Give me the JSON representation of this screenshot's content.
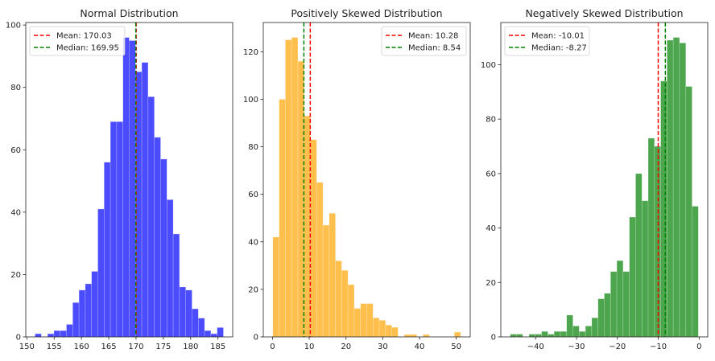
{
  "chart_data": [
    {
      "type": "bar",
      "subtype": "histogram",
      "title": "Normal Distribution",
      "xlabel": "",
      "ylabel": "",
      "bin_range": [
        151.5,
        186.0
      ],
      "counts": [
        1,
        0,
        1,
        2,
        2,
        4,
        11,
        15,
        17,
        21,
        41,
        56,
        69,
        69,
        96,
        95,
        85,
        88,
        77,
        64,
        57,
        44,
        33,
        16,
        15,
        9,
        6,
        2,
        1,
        3
      ],
      "xlim": [
        149.8,
        187.7
      ],
      "ylim": [
        0,
        100.8
      ],
      "xticks": [
        150,
        155,
        160,
        165,
        170,
        175,
        180,
        185
      ],
      "xtick_labels": [
        "150",
        "155",
        "160",
        "165",
        "170",
        "175",
        "180",
        "185"
      ],
      "yticks": [
        0,
        20,
        40,
        60,
        80,
        100
      ],
      "ytick_labels": [
        "0",
        "20",
        "40",
        "60",
        "80",
        "100"
      ],
      "color": "#4b4bff",
      "lines": [
        {
          "label": "Mean: 170.03",
          "value": 170.03,
          "color": "#ff0000"
        },
        {
          "label": "Median: 169.95",
          "value": 169.95,
          "color": "#008000"
        }
      ],
      "legend": "upper-left",
      "grid": false
    },
    {
      "type": "bar",
      "subtype": "histogram",
      "title": "Positively Skewed Distribution",
      "xlabel": "",
      "ylabel": "",
      "bin_range": [
        0.1,
        51.2
      ],
      "counts": [
        42,
        100,
        125,
        126,
        116,
        93,
        83,
        65,
        47,
        52,
        32,
        28,
        22,
        12,
        14,
        14,
        8,
        7,
        5,
        4,
        0,
        1,
        1,
        0,
        1,
        0,
        0,
        0,
        0,
        2
      ],
      "xlim": [
        -2.5,
        53.8
      ],
      "ylim": [
        0,
        132.3
      ],
      "xticks": [
        0,
        10,
        20,
        30,
        40,
        50
      ],
      "xtick_labels": [
        "0",
        "10",
        "20",
        "30",
        "40",
        "50"
      ],
      "yticks": [
        0,
        20,
        40,
        60,
        80,
        100,
        120
      ],
      "ytick_labels": [
        "0",
        "20",
        "40",
        "60",
        "80",
        "100",
        "120"
      ],
      "color": "#ffbf4d",
      "lines": [
        {
          "label": "Mean: 10.28",
          "value": 10.28,
          "color": "#ff0000"
        },
        {
          "label": "Median: 8.54",
          "value": 8.54,
          "color": "#008000"
        }
      ],
      "legend": "upper-right",
      "grid": false
    },
    {
      "type": "bar",
      "subtype": "histogram",
      "title": "Negatively Skewed Distribution",
      "xlabel": "",
      "ylabel": "",
      "bin_range": [
        -46.2,
        -0.2
      ],
      "counts": [
        1,
        1,
        0,
        1,
        1,
        2,
        1,
        2,
        2,
        8,
        4,
        2,
        4,
        7,
        14,
        16,
        24,
        28,
        24,
        44,
        60,
        50,
        73,
        70,
        94,
        109,
        110,
        108,
        92,
        48
      ],
      "xlim": [
        -48.5,
        2.1
      ],
      "ylim": [
        0,
        115.5
      ],
      "xticks": [
        -40,
        -30,
        -20,
        -10,
        0
      ],
      "xtick_labels": [
        "−40",
        "−30",
        "−20",
        "−10",
        "0"
      ],
      "yticks": [
        0,
        20,
        40,
        60,
        80,
        100
      ],
      "ytick_labels": [
        "0",
        "20",
        "40",
        "60",
        "80",
        "100"
      ],
      "color": "#4da64d",
      "lines": [
        {
          "label": "Mean: -10.01",
          "value": -10.01,
          "color": "#ff0000"
        },
        {
          "label": "Median: -8.27",
          "value": -8.27,
          "color": "#008000"
        }
      ],
      "legend": "upper-left",
      "grid": false
    }
  ]
}
